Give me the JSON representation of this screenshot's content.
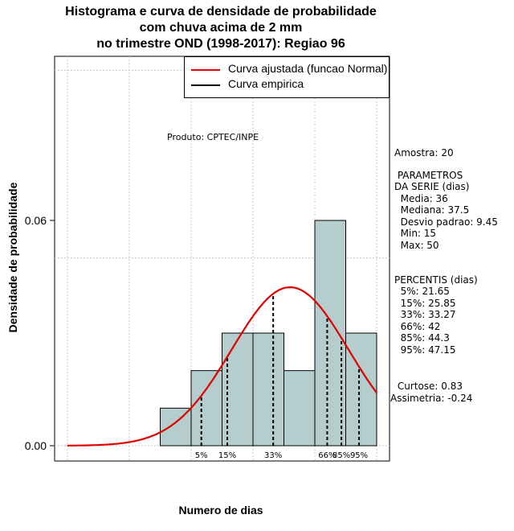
{
  "title": {
    "line1": "Histograma e curva de densidade de probabilidade",
    "line2": "com chuva acima de 2 mm",
    "line3": "no trimestre OND (1998-2017): Regiao 96"
  },
  "credit": "Produto: CPTEC/INPE",
  "legend": {
    "fitted_label": "Curva ajustada (funcao Normal)",
    "empirical_label": "Curva empirica",
    "fitted_color": "#e00000",
    "empirical_color": "#000000"
  },
  "stats": {
    "sample": "Amostra: 20",
    "params_title": " PARAMETROS",
    "params_sub": "DA SERIE (dias)",
    "media": "  Media: 36",
    "mediana": "  Mediana: 37.5",
    "desvio": "  Desvio padrao: 9.45",
    "min": "  Min: 15",
    "max": "  Max: 50",
    "perc_title": "PERCENTIS (dias)",
    "p5": "  5%: 21.65",
    "p15": "  15%: 25.85",
    "p33": "  33%: 33.27",
    "p66": "  66%: 42",
    "p85": "  85%: 44.3",
    "p95": "  95%: 47.15",
    "curtose": " Curtose: 0.83",
    "assimetria": "Assimetria: -0.24"
  },
  "chart_data": {
    "type": "bar",
    "title": "Histograma e curva de densidade de probabilidade com chuva acima de 2 mm no trimestre OND (1998-2017): Regiao 96",
    "xlabel": "Numero de dias",
    "ylabel": "Densidade de probabilidade",
    "xlim": [
      0,
      52
    ],
    "ylim": [
      -0.004,
      0.104
    ],
    "y_ticks": [
      0.0,
      0.06
    ],
    "y_tick_labels": [
      "0.00",
      "0.06"
    ],
    "x_gridlines": [
      0,
      10,
      20,
      30,
      40,
      50
    ],
    "y_gridlines": [
      0.0,
      0.05,
      0.1
    ],
    "bins": [
      {
        "start": 15,
        "end": 20,
        "density": 0.01
      },
      {
        "start": 20,
        "end": 25,
        "density": 0.02
      },
      {
        "start": 25,
        "end": 30,
        "density": 0.03
      },
      {
        "start": 30,
        "end": 35,
        "density": 0.03
      },
      {
        "start": 35,
        "end": 40,
        "density": 0.02
      },
      {
        "start": 40,
        "end": 45,
        "density": 0.06
      },
      {
        "start": 45,
        "end": 50,
        "density": 0.03
      }
    ],
    "bar_color": "#b5cdcd",
    "normal_fit": {
      "mean": 36,
      "sd": 9.45,
      "x_range": [
        0,
        50
      ]
    },
    "percentiles": [
      {
        "label": "5%",
        "value": 21.65
      },
      {
        "label": "15%",
        "value": 25.85
      },
      {
        "label": "33%",
        "value": 33.27
      },
      {
        "label": "66%",
        "value": 42
      },
      {
        "label": "85%",
        "value": 44.3
      },
      {
        "label": "95%",
        "value": 47.15
      }
    ]
  }
}
